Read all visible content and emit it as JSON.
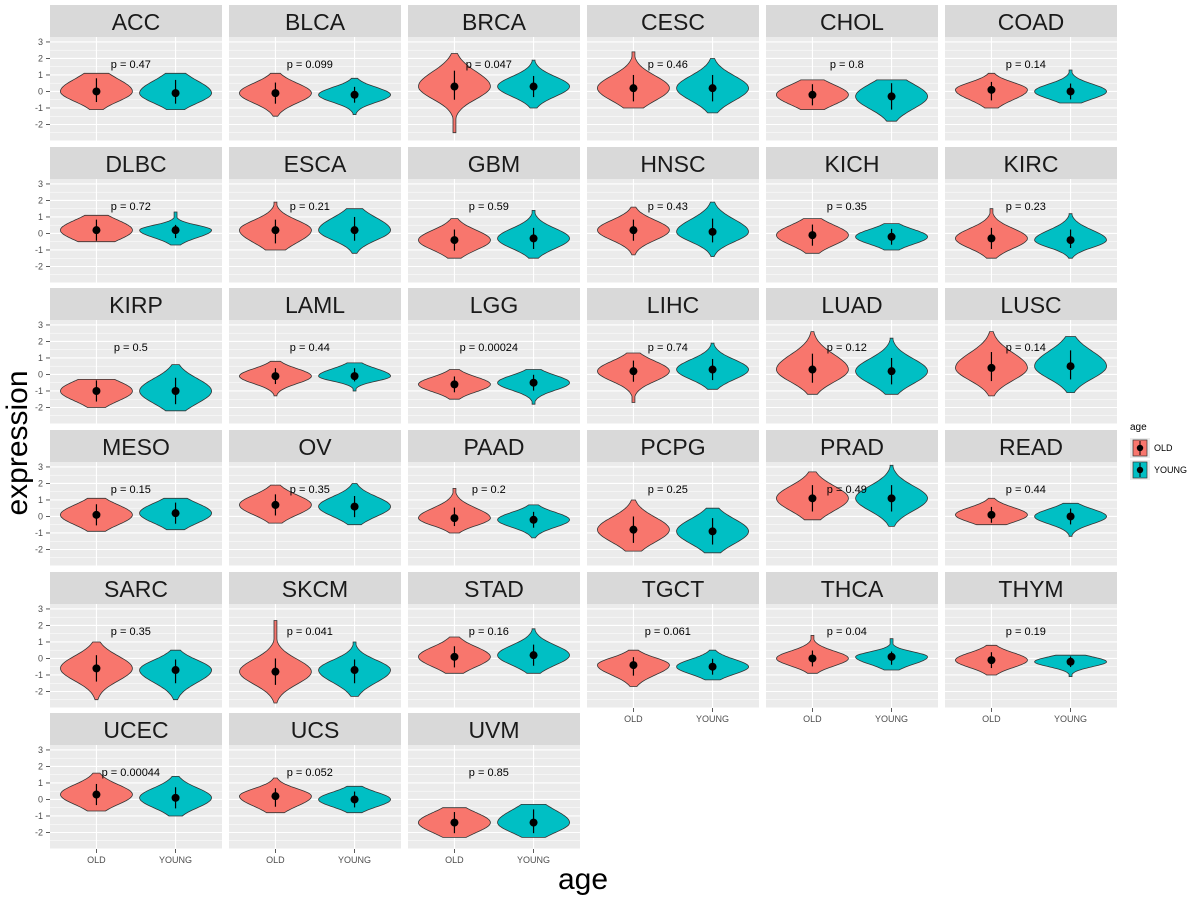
{
  "chart_data": {
    "type": "violin",
    "facet_layout": {
      "cols": 6,
      "rows": 6
    },
    "xlabel": "age",
    "ylabel": "expression",
    "y_ticks": [
      3,
      2,
      1,
      0,
      -1,
      -2
    ],
    "ylim": [
      -3,
      3.3
    ],
    "categories": [
      "OLD",
      "YOUNG"
    ],
    "legend": {
      "title": "age",
      "position": "right",
      "entries": [
        {
          "label": "OLD",
          "color": "#f8766d"
        },
        {
          "label": "YOUNG",
          "color": "#00bfc4"
        }
      ]
    },
    "panels": [
      {
        "name": "ACC",
        "p": "p = 0.47",
        "old": {
          "median": 0.0,
          "min": -1.1,
          "max": 1.1,
          "q1": -0.4,
          "q3": 0.5
        },
        "young": {
          "median": -0.1,
          "min": -1.1,
          "max": 1.1,
          "q1": -0.5,
          "q3": 0.4
        }
      },
      {
        "name": "BLCA",
        "p": "p = 0.099",
        "old": {
          "median": -0.1,
          "min": -1.5,
          "max": 1.1,
          "q1": -0.5,
          "q3": 0.3
        },
        "young": {
          "median": -0.2,
          "min": -1.4,
          "max": 0.8,
          "q1": -0.5,
          "q3": 0.1
        }
      },
      {
        "name": "BRCA",
        "p": "p = 0.047",
        "old": {
          "median": 0.3,
          "min": -2.5,
          "max": 2.3,
          "q1": -0.2,
          "q3": 0.9
        },
        "young": {
          "median": 0.3,
          "min": -1.0,
          "max": 1.9,
          "q1": -0.1,
          "q3": 0.7
        }
      },
      {
        "name": "CESC",
        "p": "p = 0.46",
        "old": {
          "median": 0.2,
          "min": -1.0,
          "max": 2.4,
          "q1": -0.3,
          "q3": 0.7
        },
        "young": {
          "median": 0.2,
          "min": -1.3,
          "max": 2.0,
          "q1": -0.3,
          "q3": 0.7
        }
      },
      {
        "name": "CHOL",
        "p": "p = 0.8",
        "old": {
          "median": -0.2,
          "min": -1.1,
          "max": 0.7,
          "q1": -0.6,
          "q3": 0.2
        },
        "young": {
          "median": -0.3,
          "min": -1.8,
          "max": 0.7,
          "q1": -0.8,
          "q3": 0.2
        }
      },
      {
        "name": "COAD",
        "p": "p = 0.14",
        "old": {
          "median": 0.1,
          "min": -1.0,
          "max": 1.1,
          "q1": -0.3,
          "q3": 0.4
        },
        "young": {
          "median": 0.0,
          "min": -0.7,
          "max": 1.3,
          "q1": -0.3,
          "q3": 0.3
        }
      },
      {
        "name": "DLBC",
        "p": "p = 0.72",
        "old": {
          "median": 0.2,
          "min": -0.5,
          "max": 1.1,
          "q1": -0.2,
          "q3": 0.6
        },
        "young": {
          "median": 0.2,
          "min": -0.7,
          "max": 1.3,
          "q1": -0.1,
          "q3": 0.4
        }
      },
      {
        "name": "ESCA",
        "p": "p = 0.21",
        "old": {
          "median": 0.2,
          "min": -1.0,
          "max": 1.9,
          "q1": -0.3,
          "q3": 0.6
        },
        "young": {
          "median": 0.2,
          "min": -1.2,
          "max": 1.5,
          "q1": -0.2,
          "q3": 0.7
        }
      },
      {
        "name": "GBM",
        "p": "p = 0.59",
        "old": {
          "median": -0.4,
          "min": -1.5,
          "max": 0.9,
          "q1": -0.8,
          "q3": 0.0
        },
        "young": {
          "median": -0.3,
          "min": -1.5,
          "max": 1.4,
          "q1": -0.7,
          "q3": 0.1
        }
      },
      {
        "name": "HNSC",
        "p": "p = 0.43",
        "old": {
          "median": 0.2,
          "min": -1.3,
          "max": 1.6,
          "q1": -0.2,
          "q3": 0.6
        },
        "young": {
          "median": 0.1,
          "min": -1.4,
          "max": 1.9,
          "q1": -0.3,
          "q3": 0.6
        }
      },
      {
        "name": "KICH",
        "p": "p = 0.35",
        "old": {
          "median": -0.1,
          "min": -1.2,
          "max": 0.9,
          "q1": -0.5,
          "q3": 0.3
        },
        "young": {
          "median": -0.2,
          "min": -1.0,
          "max": 0.6,
          "q1": -0.5,
          "q3": 0.1
        }
      },
      {
        "name": "KIRC",
        "p": "p = 0.23",
        "old": {
          "median": -0.3,
          "min": -1.5,
          "max": 1.5,
          "q1": -0.7,
          "q3": 0.1
        },
        "young": {
          "median": -0.4,
          "min": -1.5,
          "max": 1.2,
          "q1": -0.7,
          "q3": 0.0
        }
      },
      {
        "name": "KIRP",
        "p": "p = 0.5",
        "old": {
          "median": -1.0,
          "min": -2.0,
          "max": -0.3,
          "q1": -1.4,
          "q3": -0.6
        },
        "young": {
          "median": -1.0,
          "min": -2.2,
          "max": 0.6,
          "q1": -1.5,
          "q3": -0.5
        }
      },
      {
        "name": "LAML",
        "p": "p = 0.44",
        "old": {
          "median": -0.1,
          "min": -1.3,
          "max": 0.8,
          "q1": -0.4,
          "q3": 0.2
        },
        "young": {
          "median": -0.1,
          "min": -1.0,
          "max": 0.7,
          "q1": -0.3,
          "q3": 0.2
        }
      },
      {
        "name": "LGG",
        "p": "p = 0.00024",
        "old": {
          "median": -0.6,
          "min": -1.5,
          "max": 0.3,
          "q1": -0.9,
          "q3": -0.3
        },
        "young": {
          "median": -0.5,
          "min": -1.8,
          "max": 0.3,
          "q1": -0.8,
          "q3": -0.2
        }
      },
      {
        "name": "LIHC",
        "p": "p = 0.74",
        "old": {
          "median": 0.2,
          "min": -1.7,
          "max": 1.3,
          "q1": -0.2,
          "q3": 0.6
        },
        "young": {
          "median": 0.3,
          "min": -0.9,
          "max": 1.9,
          "q1": -0.1,
          "q3": 0.7
        }
      },
      {
        "name": "LUAD",
        "p": "p = 0.12",
        "old": {
          "median": 0.3,
          "min": -1.2,
          "max": 2.6,
          "q1": -0.2,
          "q3": 0.9
        },
        "young": {
          "median": 0.2,
          "min": -1.2,
          "max": 2.2,
          "q1": -0.3,
          "q3": 0.7
        }
      },
      {
        "name": "LUSC",
        "p": "p = 0.14",
        "old": {
          "median": 0.4,
          "min": -1.3,
          "max": 2.6,
          "q1": -0.1,
          "q3": 1.0
        },
        "young": {
          "median": 0.5,
          "min": -1.1,
          "max": 2.3,
          "q1": 0.0,
          "q3": 1.1
        }
      },
      {
        "name": "MESO",
        "p": "p = 0.15",
        "old": {
          "median": 0.1,
          "min": -0.9,
          "max": 1.1,
          "q1": -0.3,
          "q3": 0.5
        },
        "young": {
          "median": 0.2,
          "min": -0.8,
          "max": 1.1,
          "q1": -0.2,
          "q3": 0.6
        }
      },
      {
        "name": "OV",
        "p": "p = 0.35",
        "old": {
          "median": 0.7,
          "min": -0.4,
          "max": 1.9,
          "q1": 0.3,
          "q3": 1.1
        },
        "young": {
          "median": 0.6,
          "min": -0.5,
          "max": 2.0,
          "q1": 0.2,
          "q3": 1.0
        }
      },
      {
        "name": "PAAD",
        "p": "p = 0.2",
        "old": {
          "median": -0.1,
          "min": -1.0,
          "max": 1.7,
          "q1": -0.4,
          "q3": 0.3
        },
        "young": {
          "median": -0.2,
          "min": -1.3,
          "max": 0.7,
          "q1": -0.5,
          "q3": 0.1
        }
      },
      {
        "name": "PCPG",
        "p": "p = 0.25",
        "old": {
          "median": -0.8,
          "min": -2.1,
          "max": 1.0,
          "q1": -1.3,
          "q3": -0.3
        },
        "young": {
          "median": -0.9,
          "min": -2.2,
          "max": 0.5,
          "q1": -1.4,
          "q3": -0.4
        }
      },
      {
        "name": "PRAD",
        "p": "p = 0.49",
        "old": {
          "median": 1.1,
          "min": -0.2,
          "max": 2.7,
          "q1": 0.6,
          "q3": 1.6
        },
        "young": {
          "median": 1.1,
          "min": -0.6,
          "max": 3.1,
          "q1": 0.6,
          "q3": 1.6
        }
      },
      {
        "name": "READ",
        "p": "p = 0.44",
        "old": {
          "median": 0.1,
          "min": -0.5,
          "max": 1.1,
          "q1": -0.2,
          "q3": 0.4
        },
        "young": {
          "median": 0.0,
          "min": -1.2,
          "max": 0.8,
          "q1": -0.3,
          "q3": 0.3
        }
      },
      {
        "name": "SARC",
        "p": "p = 0.35",
        "old": {
          "median": -0.6,
          "min": -2.5,
          "max": 1.0,
          "q1": -1.1,
          "q3": -0.1
        },
        "young": {
          "median": -0.7,
          "min": -2.5,
          "max": 0.5,
          "q1": -1.2,
          "q3": -0.3
        }
      },
      {
        "name": "SKCM",
        "p": "p = 0.041",
        "old": {
          "median": -0.8,
          "min": -2.7,
          "max": 2.3,
          "q1": -1.3,
          "q3": -0.3
        },
        "young": {
          "median": -0.7,
          "min": -2.3,
          "max": 1.0,
          "q1": -1.2,
          "q3": -0.3
        }
      },
      {
        "name": "STAD",
        "p": "p = 0.16",
        "old": {
          "median": 0.1,
          "min": -0.9,
          "max": 1.3,
          "q1": -0.3,
          "q3": 0.5
        },
        "young": {
          "median": 0.2,
          "min": -0.9,
          "max": 1.8,
          "q1": -0.2,
          "q3": 0.6
        }
      },
      {
        "name": "TGCT",
        "p": "p = 0.061",
        "old": {
          "median": -0.4,
          "min": -1.7,
          "max": 0.5,
          "q1": -0.8,
          "q3": -0.1
        },
        "young": {
          "median": -0.5,
          "min": -1.3,
          "max": 0.5,
          "q1": -0.8,
          "q3": -0.2
        }
      },
      {
        "name": "THCA",
        "p": "p = 0.04",
        "old": {
          "median": 0.0,
          "min": -0.9,
          "max": 1.4,
          "q1": -0.3,
          "q3": 0.3
        },
        "young": {
          "median": 0.1,
          "min": -0.7,
          "max": 1.2,
          "q1": -0.2,
          "q3": 0.3
        }
      },
      {
        "name": "THYM",
        "p": "p = 0.19",
        "old": {
          "median": -0.1,
          "min": -1.0,
          "max": 0.8,
          "q1": -0.4,
          "q3": 0.2
        },
        "young": {
          "median": -0.2,
          "min": -1.1,
          "max": 0.2,
          "q1": -0.4,
          "q3": 0.0
        }
      },
      {
        "name": "UCEC",
        "p": "p = 0.00044",
        "old": {
          "median": 0.3,
          "min": -0.7,
          "max": 1.6,
          "q1": -0.1,
          "q3": 0.7
        },
        "young": {
          "median": 0.1,
          "min": -1.0,
          "max": 1.4,
          "q1": -0.3,
          "q3": 0.5
        }
      },
      {
        "name": "UCS",
        "p": "p = 0.052",
        "old": {
          "median": 0.2,
          "min": -0.8,
          "max": 1.3,
          "q1": -0.2,
          "q3": 0.5
        },
        "young": {
          "median": 0.0,
          "min": -0.8,
          "max": 0.8,
          "q1": -0.3,
          "q3": 0.3
        }
      },
      {
        "name": "UVM",
        "p": "p = 0.85",
        "old": {
          "median": -1.4,
          "min": -2.3,
          "max": -0.5,
          "q1": -1.8,
          "q3": -1.0
        },
        "young": {
          "median": -1.4,
          "min": -2.3,
          "max": -0.3,
          "q1": -1.8,
          "q3": -0.9
        }
      }
    ]
  }
}
